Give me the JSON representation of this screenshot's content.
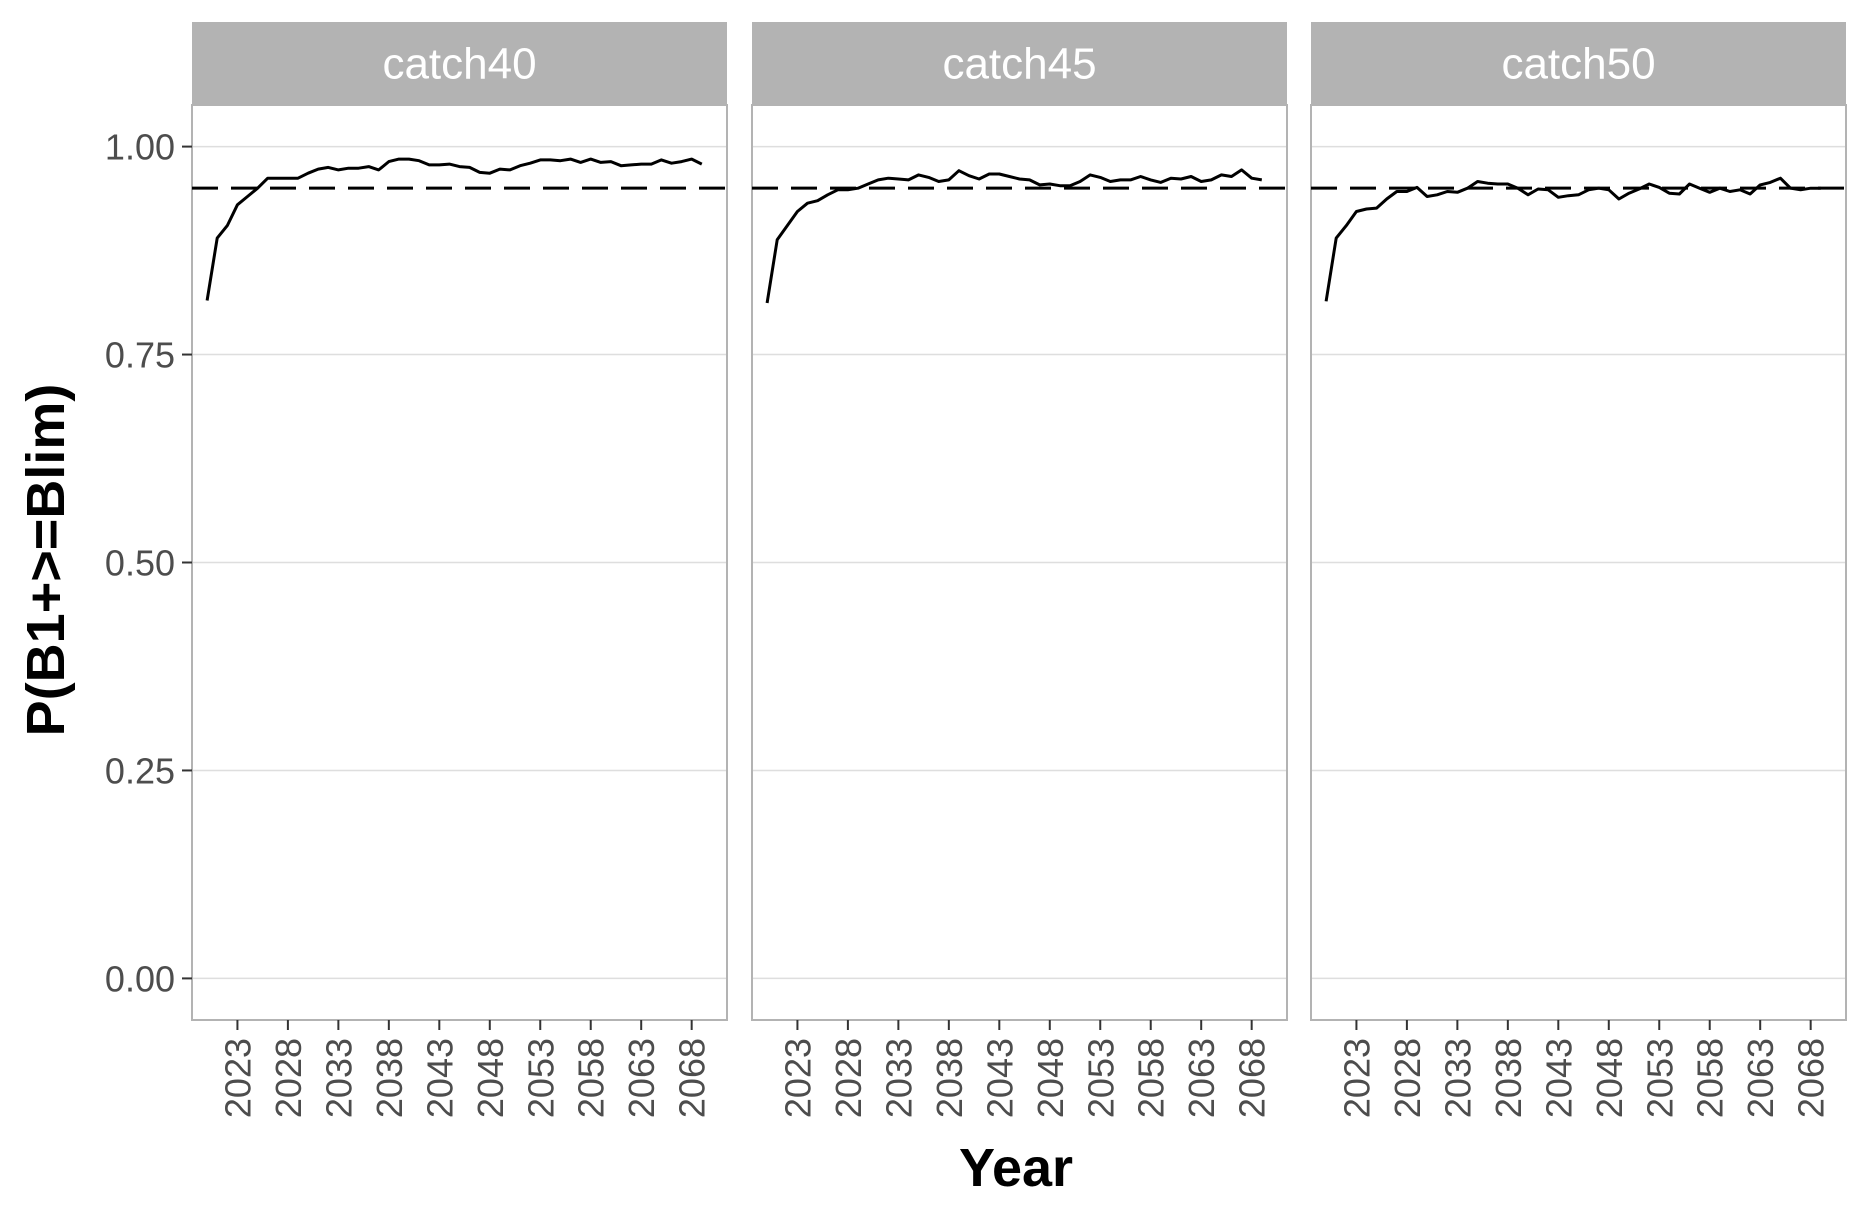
{
  "chart_data": {
    "type": "line",
    "xlabel": "Year",
    "ylabel": "P(B1+>=Blim)",
    "x_ticks": [
      2023,
      2028,
      2033,
      2038,
      2043,
      2048,
      2053,
      2058,
      2063,
      2068
    ],
    "y_ticks": [
      "0.00",
      "0.25",
      "0.50",
      "0.75",
      "1.00"
    ],
    "xlim": [
      2018.5,
      2071.5
    ],
    "ylim": [
      -0.05,
      1.05
    ],
    "reference_line": {
      "y": 0.95,
      "style": "dashed"
    },
    "grid": true,
    "facets": [
      {
        "label": "catch40",
        "x": [
          2020,
          2021,
          2022,
          2023,
          2024,
          2025,
          2026,
          2027,
          2028,
          2029,
          2030,
          2031,
          2032,
          2033,
          2034,
          2035,
          2036,
          2037,
          2038,
          2039,
          2040,
          2041,
          2042,
          2043,
          2044,
          2045,
          2046,
          2047,
          2048,
          2049,
          2050,
          2051,
          2052,
          2053,
          2054,
          2055,
          2056,
          2057,
          2058,
          2059,
          2060,
          2061,
          2062,
          2063,
          2064,
          2065,
          2066,
          2067,
          2068,
          2069
        ],
        "y": [
          0.815,
          0.89,
          0.905,
          0.93,
          0.94,
          0.95,
          0.962,
          0.962,
          0.962,
          0.962,
          0.968,
          0.973,
          0.975,
          0.972,
          0.974,
          0.974,
          0.976,
          0.972,
          0.982,
          0.985,
          0.985,
          0.983,
          0.978,
          0.978,
          0.979,
          0.976,
          0.975,
          0.969,
          0.968,
          0.973,
          0.972,
          0.977,
          0.98,
          0.984,
          0.984,
          0.983,
          0.985,
          0.981,
          0.985,
          0.981,
          0.982,
          0.977,
          0.978,
          0.979,
          0.979,
          0.984,
          0.98,
          0.982,
          0.985,
          0.979
        ]
      },
      {
        "label": "catch45",
        "x": [
          2020,
          2021,
          2022,
          2023,
          2024,
          2025,
          2026,
          2027,
          2028,
          2029,
          2030,
          2031,
          2032,
          2033,
          2034,
          2035,
          2036,
          2037,
          2038,
          2039,
          2040,
          2041,
          2042,
          2043,
          2044,
          2045,
          2046,
          2047,
          2048,
          2049,
          2050,
          2051,
          2052,
          2053,
          2054,
          2055,
          2056,
          2057,
          2058,
          2059,
          2060,
          2061,
          2062,
          2063,
          2064,
          2065,
          2066,
          2067,
          2068,
          2069
        ],
        "y": [
          0.812,
          0.888,
          0.905,
          0.922,
          0.932,
          0.935,
          0.942,
          0.948,
          0.948,
          0.95,
          0.955,
          0.96,
          0.962,
          0.961,
          0.96,
          0.966,
          0.963,
          0.958,
          0.96,
          0.971,
          0.965,
          0.961,
          0.967,
          0.967,
          0.964,
          0.961,
          0.96,
          0.954,
          0.955,
          0.953,
          0.953,
          0.958,
          0.966,
          0.963,
          0.958,
          0.96,
          0.96,
          0.964,
          0.96,
          0.957,
          0.962,
          0.961,
          0.964,
          0.958,
          0.96,
          0.966,
          0.964,
          0.972,
          0.962,
          0.96
        ]
      },
      {
        "label": "catch50",
        "x": [
          2020,
          2021,
          2022,
          2023,
          2024,
          2025,
          2026,
          2027,
          2028,
          2029,
          2030,
          2031,
          2032,
          2033,
          2034,
          2035,
          2036,
          2037,
          2038,
          2039,
          2040,
          2041,
          2042,
          2043,
          2044,
          2045,
          2046,
          2047,
          2048,
          2049,
          2050,
          2051,
          2052,
          2053,
          2054,
          2055,
          2056,
          2057,
          2058,
          2059,
          2060,
          2061,
          2062,
          2063,
          2064,
          2065,
          2066,
          2067,
          2068,
          2069
        ],
        "y": [
          0.814,
          0.89,
          0.905,
          0.922,
          0.925,
          0.926,
          0.937,
          0.946,
          0.946,
          0.951,
          0.94,
          0.942,
          0.946,
          0.945,
          0.95,
          0.958,
          0.956,
          0.955,
          0.955,
          0.95,
          0.942,
          0.949,
          0.948,
          0.939,
          0.941,
          0.942,
          0.948,
          0.95,
          0.948,
          0.937,
          0.944,
          0.949,
          0.955,
          0.951,
          0.944,
          0.943,
          0.955,
          0.95,
          0.945,
          0.95,
          0.946,
          0.948,
          0.943,
          0.954,
          0.957,
          0.962,
          0.95,
          0.948,
          0.95,
          0.95
        ]
      }
    ]
  }
}
